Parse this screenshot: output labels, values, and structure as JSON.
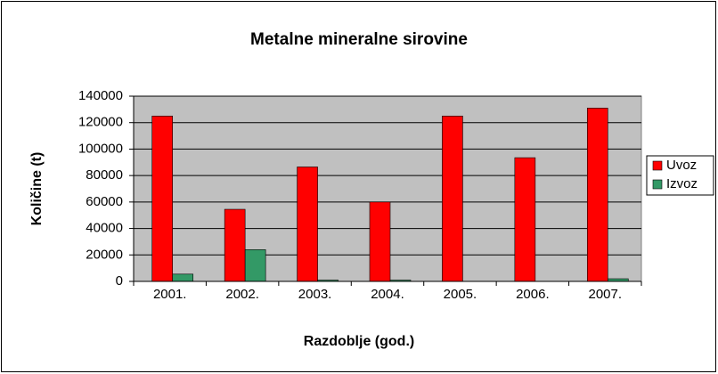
{
  "chart_data": {
    "type": "bar",
    "title": "Metalne mineralne sirovine",
    "x_label": "Razdoblje (god.)",
    "y_label": "Količine (t)",
    "categories": [
      "2001.",
      "2002.",
      "2003.",
      "2004.",
      "2005.",
      "2006.",
      "2007."
    ],
    "series": [
      {
        "name": "Uvoz",
        "color": "#ff0000",
        "values": [
          125000,
          54500,
          86500,
          60000,
          125000,
          93500,
          131000
        ]
      },
      {
        "name": "Izvoz",
        "color": "#339966",
        "values": [
          5500,
          24000,
          1000,
          1000,
          0,
          0,
          2000
        ]
      }
    ],
    "ylim": [
      0,
      140000
    ],
    "yticks": [
      0,
      20000,
      40000,
      60000,
      80000,
      100000,
      120000,
      140000
    ],
    "grid": true,
    "legend": "right",
    "plot_background": "#c0c0c0"
  }
}
